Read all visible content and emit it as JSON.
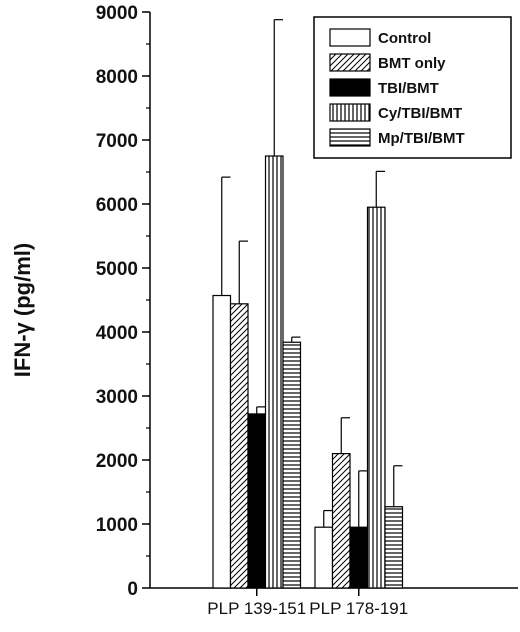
{
  "chart_data": {
    "type": "bar",
    "ylabel": "IFN-γ (pg/ml)",
    "xlabel": "",
    "ylim": [
      0,
      9000
    ],
    "yticks": [
      0,
      1000,
      2000,
      3000,
      4000,
      5000,
      6000,
      7000,
      8000,
      9000
    ],
    "categories": [
      "PLP 139-151",
      "PLP 178-191"
    ],
    "series": [
      {
        "name": "Control",
        "pattern": "open",
        "values": [
          4570,
          950
        ],
        "errors": [
          1850,
          260
        ]
      },
      {
        "name": "BMT only",
        "pattern": "diagonal",
        "values": [
          4440,
          2100
        ],
        "errors": [
          980,
          560
        ]
      },
      {
        "name": "TBI/BMT",
        "pattern": "solid",
        "values": [
          2720,
          950
        ],
        "errors": [
          110,
          880
        ]
      },
      {
        "name": "Cy/TBI/BMT",
        "pattern": "vertical",
        "values": [
          6750,
          5950
        ],
        "errors": [
          2130,
          560
        ]
      },
      {
        "name": "Mp/TBI/BMT",
        "pattern": "horizontal",
        "values": [
          3840,
          1270
        ],
        "errors": [
          80,
          640
        ]
      }
    ],
    "legend_position": "top-right",
    "grid": false,
    "colors": {
      "fill_open": "#ffffff",
      "fill_solid": "#000000",
      "stroke": "#000000"
    }
  }
}
